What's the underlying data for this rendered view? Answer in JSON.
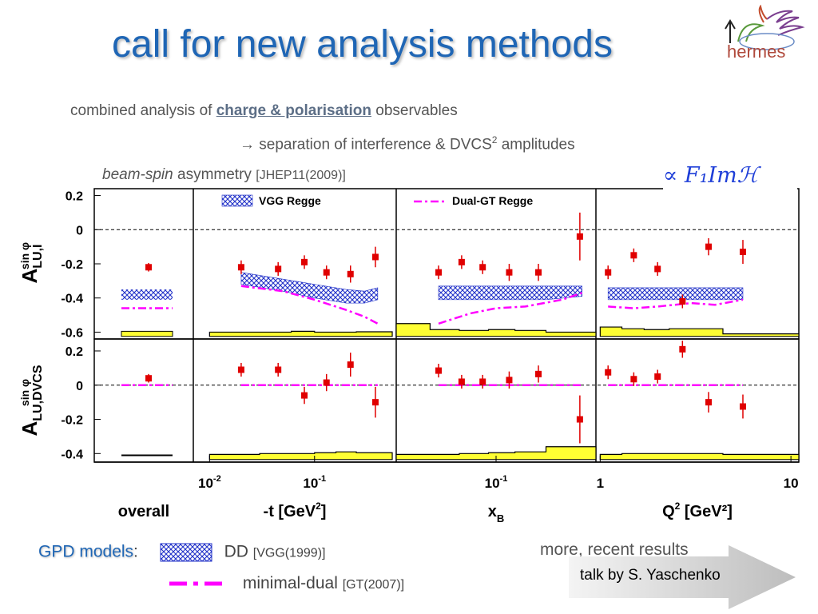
{
  "slide": {
    "title": "call for new analysis methods",
    "logo_text": "hermes",
    "line1_pre": "combined analysis of",
    "line1_hl": "charge & polarisation",
    "line1_post": "observables",
    "line2": "→ separation of interference & DVCS",
    "line2_sup": "2",
    "line2_post": "amplitudes",
    "line3_it": "beam-spin",
    "line3_text": "asymmetry",
    "line3_ref": "[JHEP11(2009)]",
    "formula": "∝ F₁Imℋ",
    "gpd_label": "GPD models",
    "gpd_colon": ":",
    "dd_label": "DD",
    "dd_ref": "[VGG(1999)]",
    "md_label": "minimal-dual",
    "md_ref": "[GT(2007)]",
    "more_text": "more, recent results",
    "talk_text": "talk by S. Yaschenko",
    "colors": {
      "title": "#1f66b5",
      "data": "#e00000",
      "vgg": "#2030c8",
      "gt": "#ff00ff",
      "syst": "#ffff33"
    }
  },
  "chart_data": {
    "type": "scatter",
    "panels": [
      {
        "name": "overall",
        "xlabel": "overall",
        "xscale": "none"
      },
      {
        "name": "t",
        "xlabel": "-t [GeV",
        "xlabel_sup": "2",
        "xlabel_post": "]",
        "xscale": "log",
        "xlim": [
          0.007,
          0.6
        ],
        "xticks": [
          {
            "v": 0.01,
            "b": "10",
            "e": "-2"
          },
          {
            "v": 0.1,
            "b": "10",
            "e": "-1"
          }
        ]
      },
      {
        "name": "xB",
        "xlabel": "x",
        "xlabel_sub": "B",
        "xscale": "log",
        "xlim": [
          0.025,
          0.4
        ],
        "xticks": [
          {
            "v": 0.1,
            "b": "10",
            "e": "-1"
          }
        ]
      },
      {
        "name": "Q2",
        "xlabel": "Q",
        "xlabel_sup": "2",
        "xlabel_post": " [GeV²]",
        "xscale": "log",
        "xlim": [
          0.95,
          11
        ],
        "xticks": [
          {
            "v": 1,
            "t": "1"
          },
          {
            "v": 10,
            "t": "10"
          }
        ]
      }
    ],
    "rows": [
      {
        "ylabel": "A",
        "ylabel_sup": "sin φ",
        "ylabel_sub": "LU,I",
        "ylim": [
          -0.64,
          0.24
        ],
        "yticks": [
          {
            "v": 0.2,
            "t": "0.2"
          },
          {
            "v": 0,
            "t": "0"
          },
          {
            "v": -0.2,
            "t": "-0.2"
          },
          {
            "v": -0.4,
            "t": "-0.4"
          },
          {
            "v": -0.6,
            "t": "-0.6"
          }
        ],
        "legend": [
          {
            "panel": 1,
            "kind": "hatch",
            "label": "VGG Regge"
          },
          {
            "panel": 2,
            "kind": "dashdot",
            "label": "Dual-GT Regge"
          }
        ],
        "overall": {
          "y": -0.22,
          "err": 0.025,
          "band": [
            -0.41,
            -0.35
          ],
          "gt": -0.46,
          "syst": -0.595
        },
        "series": {
          "t": {
            "x": [
              0.02,
              0.045,
              0.08,
              0.13,
              0.22,
              0.38
            ],
            "y": [
              -0.22,
              -0.23,
              -0.19,
              -0.25,
              -0.26,
              -0.16
            ],
            "err": [
              0.04,
              0.04,
              0.04,
              0.04,
              0.05,
              0.06
            ],
            "band_x": [
              0.02,
              0.05,
              0.1,
              0.2,
              0.3,
              0.4
            ],
            "band_lo": [
              -0.32,
              -0.36,
              -0.4,
              -0.43,
              -0.43,
              -0.41
            ],
            "band_hi": [
              -0.25,
              -0.29,
              -0.32,
              -0.35,
              -0.36,
              -0.34
            ],
            "gt_x": [
              0.02,
              0.05,
              0.1,
              0.2,
              0.3,
              0.4
            ],
            "gt_y": [
              -0.33,
              -0.36,
              -0.41,
              -0.47,
              -0.51,
              -0.55
            ],
            "syst_x": [
              0.01,
              0.03,
              0.06,
              0.1,
              0.16,
              0.25,
              0.55
            ],
            "syst_y": [
              -0.6,
              -0.6,
              -0.595,
              -0.6,
              -0.6,
              -0.598
            ]
          },
          "xB": {
            "x": [
              0.045,
              0.062,
              0.083,
              0.12,
              0.18,
              0.32
            ],
            "y": [
              -0.25,
              -0.19,
              -0.22,
              -0.25,
              -0.25,
              -0.04
            ],
            "err": [
              0.04,
              0.04,
              0.04,
              0.05,
              0.05,
              0.14
            ],
            "band_x": [
              0.045,
              0.1,
              0.2,
              0.33
            ],
            "band_lo": [
              -0.41,
              -0.41,
              -0.41,
              -0.39
            ],
            "band_hi": [
              -0.33,
              -0.33,
              -0.33,
              -0.33
            ],
            "gt_x": [
              0.045,
              0.07,
              0.1,
              0.15,
              0.25,
              0.33
            ],
            "gt_y": [
              -0.55,
              -0.49,
              -0.46,
              -0.45,
              -0.41,
              -0.37
            ],
            "syst_x": [
              0.025,
              0.04,
              0.06,
              0.09,
              0.13,
              0.2,
              0.4
            ],
            "syst_y": [
              -0.55,
              -0.585,
              -0.59,
              -0.585,
              -0.59,
              -0.6
            ]
          },
          "Q2": {
            "x": [
              1.1,
              1.5,
              2.0,
              2.7,
              3.7,
              5.6
            ],
            "y": [
              -0.25,
              -0.15,
              -0.23,
              -0.42,
              -0.1,
              -0.13
            ],
            "err": [
              0.04,
              0.04,
              0.04,
              0.04,
              0.05,
              0.07
            ],
            "band_x": [
              1.1,
              2,
              3.5,
              5.6
            ],
            "band_lo": [
              -0.41,
              -0.41,
              -0.41,
              -0.41
            ],
            "band_hi": [
              -0.34,
              -0.34,
              -0.34,
              -0.34
            ],
            "gt_x": [
              1.1,
              1.5,
              2,
              3,
              4,
              5.6
            ],
            "gt_y": [
              -0.45,
              -0.46,
              -0.45,
              -0.43,
              -0.44,
              -0.41
            ],
            "syst_x": [
              1.0,
              1.3,
              1.7,
              2.3,
              3.2,
              4.4,
              11
            ],
            "syst_y": [
              -0.57,
              -0.58,
              -0.585,
              -0.58,
              -0.58,
              -0.61
            ]
          }
        }
      },
      {
        "ylabel": "A",
        "ylabel_sup": "sin φ",
        "ylabel_sub": "LU,DVCS",
        "ylim": [
          -0.45,
          0.27
        ],
        "yticks": [
          {
            "v": 0.2,
            "t": "0.2"
          },
          {
            "v": 0,
            "t": "0"
          },
          {
            "v": -0.2,
            "t": "-0.2"
          },
          {
            "v": -0.4,
            "t": "-0.4"
          }
        ],
        "legend": [],
        "overall": {
          "y": 0.04,
          "err": 0.025,
          "gt": 0.0,
          "syst": -0.41
        },
        "series": {
          "t": {
            "x": [
              0.02,
              0.045,
              0.08,
              0.13,
              0.22,
              0.38
            ],
            "y": [
              0.09,
              0.09,
              -0.06,
              0.015,
              0.12,
              -0.1
            ],
            "err": [
              0.04,
              0.04,
              0.05,
              0.05,
              0.07,
              0.09
            ],
            "gt_x": [
              0.02,
              0.4
            ],
            "gt_y": [
              0.0,
              0.0
            ],
            "syst_x": [
              0.01,
              0.03,
              0.06,
              0.1,
              0.16,
              0.25,
              0.55
            ],
            "syst_y": [
              -0.405,
              -0.4,
              -0.4,
              -0.395,
              -0.39,
              -0.395
            ]
          },
          "xB": {
            "x": [
              0.045,
              0.062,
              0.083,
              0.12,
              0.18,
              0.32
            ],
            "y": [
              0.085,
              0.02,
              0.02,
              0.03,
              0.065,
              -0.2
            ],
            "err": [
              0.04,
              0.04,
              0.04,
              0.05,
              0.05,
              0.14
            ],
            "gt_x": [
              0.045,
              0.33
            ],
            "gt_y": [
              0.0,
              0.0
            ],
            "syst_x": [
              0.025,
              0.04,
              0.06,
              0.09,
              0.13,
              0.2,
              0.4
            ],
            "syst_y": [
              -0.405,
              -0.405,
              -0.4,
              -0.395,
              -0.39,
              -0.36
            ]
          },
          "Q2": {
            "x": [
              1.1,
              1.5,
              2.0,
              2.7,
              3.7,
              5.6
            ],
            "y": [
              0.075,
              0.035,
              0.05,
              0.21,
              -0.1,
              -0.125
            ],
            "err": [
              0.04,
              0.04,
              0.04,
              0.05,
              0.06,
              0.07
            ],
            "gt_x": [
              1.1,
              5.6
            ],
            "gt_y": [
              0.0,
              0.0
            ],
            "syst_x": [
              1.0,
              1.3,
              1.7,
              2.3,
              3.2,
              4.4,
              11
            ],
            "syst_y": [
              -0.405,
              -0.4,
              -0.4,
              -0.4,
              -0.4,
              -0.405
            ]
          }
        }
      }
    ]
  }
}
